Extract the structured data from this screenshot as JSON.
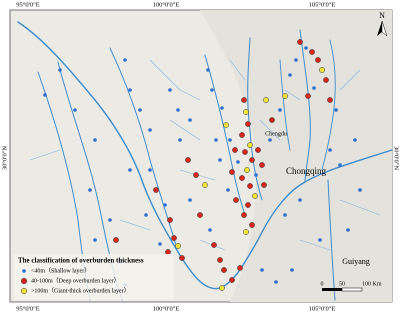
{
  "graticule": {
    "top": [
      "95°0'0\"E",
      "100°0'0\"E",
      "105°0'0\"E"
    ],
    "bottom": [
      "95°0'0\"E",
      "100°0'0\"E",
      "105°0'0\"E"
    ],
    "left": [
      "30°0'0\"N"
    ],
    "right": [
      "30°0'0\"N"
    ]
  },
  "north": "N",
  "places": [
    "Chongqing",
    "Guiyang",
    "Chengdu"
  ],
  "legend": {
    "title": "The classification of overburden thickness",
    "items": [
      "<40m（Shallow layer）",
      "40-100m（Deep overburden layer）",
      ">100m（Giant-thick overburden layer）"
    ]
  },
  "scale": [
    "0",
    "50",
    "100 Km"
  ]
}
